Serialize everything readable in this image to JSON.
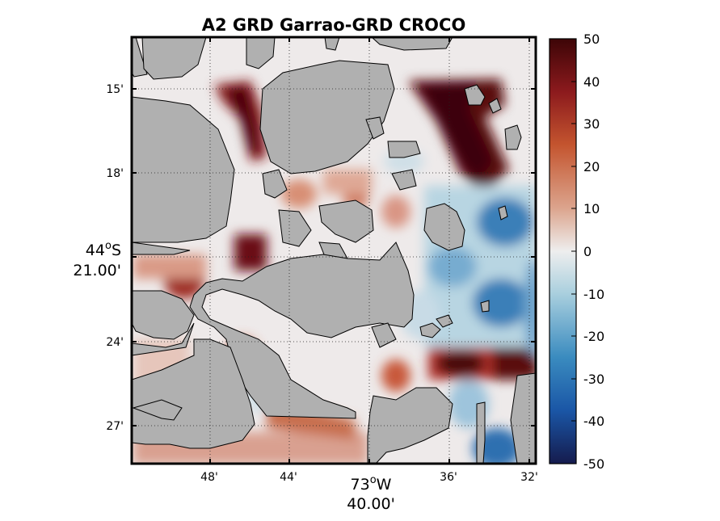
{
  "title": "A2 GRD Garrao-GRD CROCO",
  "map": {
    "x_ticks": [
      "48'",
      "44'",
      "36'",
      "32'"
    ],
    "y_ticks": [
      "15'",
      "18'",
      "24'",
      "27'"
    ],
    "x_center_label": {
      "deg": "73",
      "deg_symbol": "o",
      "hemisphere": "W",
      "minutes": "40.00'"
    },
    "y_center_label": {
      "deg": "44",
      "deg_symbol": "o",
      "hemisphere": "S",
      "minutes": "21.00'"
    },
    "land_color": "#b0b0b0",
    "grid": "dotted"
  },
  "colorbar": {
    "ticks": [
      "50",
      "40",
      "30",
      "20",
      "10",
      "0",
      "-10",
      "-20",
      "-30",
      "-40",
      "-50"
    ],
    "min": -50,
    "max": 50,
    "colors": [
      "#151b4d",
      "#1a56a6",
      "#3a8bbf",
      "#a9cfde",
      "#eeeeee",
      "#dca58e",
      "#c4552f",
      "#8c1a1d",
      "#3d0507"
    ]
  }
}
